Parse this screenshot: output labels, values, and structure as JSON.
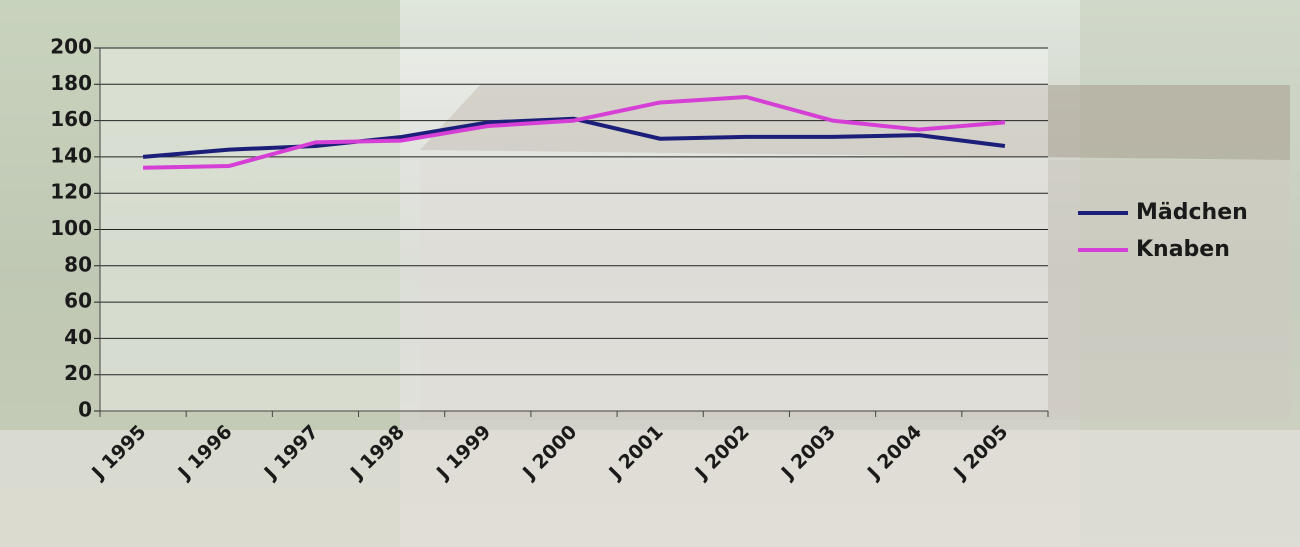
{
  "chart_data": {
    "type": "line",
    "categories": [
      "J 1995",
      "J 1996",
      "J 1997",
      "J 1998",
      "J 1999",
      "J 2000",
      "J 2001",
      "J 2002",
      "J 2003",
      "J 2004",
      "J 2005"
    ],
    "series": [
      {
        "name": "Mädchen",
        "color": "#1c1f7a",
        "values": [
          140,
          144,
          146,
          151,
          159,
          161,
          150,
          151,
          151,
          152,
          146
        ]
      },
      {
        "name": "Knaben",
        "color": "#d53fd5",
        "values": [
          134,
          135,
          148,
          149,
          157,
          160,
          170,
          173,
          160,
          155,
          159
        ]
      }
    ],
    "ylim": [
      0,
      200
    ],
    "yticks": [
      0,
      20,
      40,
      60,
      80,
      100,
      120,
      140,
      160,
      180,
      200
    ],
    "grid": true,
    "legend": "right"
  }
}
